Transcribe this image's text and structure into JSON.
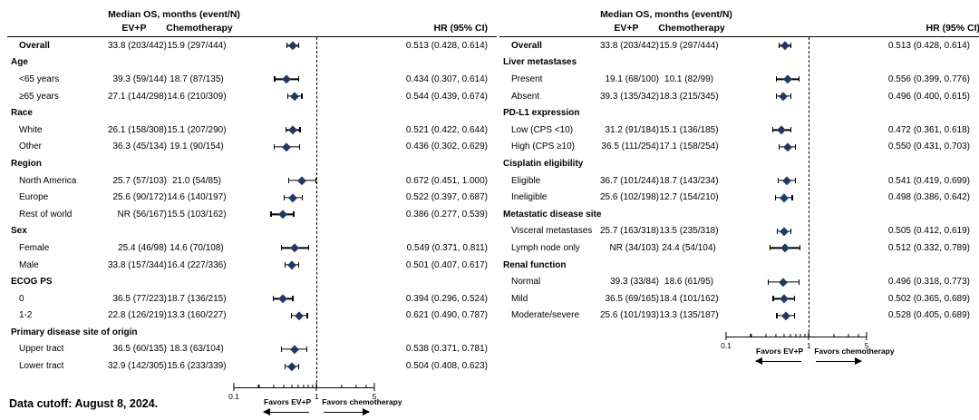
{
  "footnote": "Data cutoff: August 8, 2024.",
  "marker_color": "#1f3864",
  "chart_data": [
    {
      "type": "scatter",
      "variant": "forest-plot",
      "title": "Median OS, months (event/N)",
      "columns": {
        "ev": "EV+P",
        "chemo": "Chemotherapy",
        "hr": "HR (95% CI)"
      },
      "xscale": "log",
      "xlim": [
        0.1,
        5
      ],
      "x_ticks_labeled": [
        "0.1",
        "1",
        "5"
      ],
      "reference_line": 1,
      "favors_left": "Favors EV+P",
      "favors_right": "Favors chemotherapy",
      "rows": [
        {
          "kind": "data",
          "bold": true,
          "label": "Overall",
          "ev": "33.8 (203/442)",
          "chemo": "15.9 (297/444)",
          "hr": 0.513,
          "lo": 0.428,
          "hi": 0.614,
          "hr_text": "0.513 (0.428, 0.614)"
        },
        {
          "kind": "group",
          "label": "Age"
        },
        {
          "kind": "data",
          "label": "<65 years",
          "ev": "39.3 (59/144)",
          "chemo": "18.7 (87/135)",
          "hr": 0.434,
          "lo": 0.307,
          "hi": 0.614,
          "hr_text": "0.434 (0.307, 0.614)"
        },
        {
          "kind": "data",
          "label": "≥65 years",
          "ev": "27.1 (144/298)",
          "chemo": "14.6 (210/309)",
          "hr": 0.544,
          "lo": 0.439,
          "hi": 0.674,
          "hr_text": "0.544 (0.439, 0.674)"
        },
        {
          "kind": "group",
          "label": "Race"
        },
        {
          "kind": "data",
          "label": "White",
          "ev": "26.1 (158/308)",
          "chemo": "15.1 (207/290)",
          "hr": 0.521,
          "lo": 0.422,
          "hi": 0.644,
          "hr_text": "0.521 (0.422, 0.644)"
        },
        {
          "kind": "data",
          "label": "Other",
          "ev": "36.3 (45/134)",
          "chemo": "19.1 (90/154)",
          "hr": 0.436,
          "lo": 0.302,
          "hi": 0.629,
          "hr_text": "0.436 (0.302, 0.629)"
        },
        {
          "kind": "group",
          "label": "Region"
        },
        {
          "kind": "data",
          "label": "North America",
          "ev": "25.7 (57/103)",
          "chemo": "21.0 (54/85)",
          "hr": 0.672,
          "lo": 0.451,
          "hi": 1.0,
          "hr_text": "0.672 (0.451, 1.000)"
        },
        {
          "kind": "data",
          "label": "Europe",
          "ev": "25.6 (90/172)",
          "chemo": "14.6 (140/197)",
          "hr": 0.522,
          "lo": 0.397,
          "hi": 0.687,
          "hr_text": "0.522 (0.397, 0.687)"
        },
        {
          "kind": "data",
          "label": "Rest of world",
          "ev": "NR (56/167)",
          "chemo": "15.5 (103/162)",
          "hr": 0.386,
          "lo": 0.277,
          "hi": 0.539,
          "hr_text": "0.386 (0.277, 0.539)"
        },
        {
          "kind": "group",
          "label": "Sex"
        },
        {
          "kind": "data",
          "label": "Female",
          "ev": "25.4 (46/98)",
          "chemo": "14.6 (70/108)",
          "hr": 0.549,
          "lo": 0.371,
          "hi": 0.811,
          "hr_text": "0.549 (0.371, 0.811)"
        },
        {
          "kind": "data",
          "label": "Male",
          "ev": "33.8 (157/344)",
          "chemo": "16.4 (227/336)",
          "hr": 0.501,
          "lo": 0.407,
          "hi": 0.617,
          "hr_text": "0.501 (0.407, 0.617)"
        },
        {
          "kind": "group",
          "label": "ECOG PS"
        },
        {
          "kind": "data",
          "label": "0",
          "ev": "36.5 (77/223)",
          "chemo": "18.7 (136/215)",
          "hr": 0.394,
          "lo": 0.296,
          "hi": 0.524,
          "hr_text": "0.394 (0.296, 0.524)"
        },
        {
          "kind": "data",
          "label": "1-2",
          "ev": "22.8 (126/219)",
          "chemo": "13.3 (160/227)",
          "hr": 0.621,
          "lo": 0.49,
          "hi": 0.787,
          "hr_text": "0.621 (0.490, 0.787)"
        },
        {
          "kind": "group",
          "label": "Primary disease site of origin"
        },
        {
          "kind": "data",
          "label": "Upper tract",
          "ev": "36.5 (60/135)",
          "chemo": "18.3 (63/104)",
          "hr": 0.538,
          "lo": 0.371,
          "hi": 0.781,
          "hr_text": "0.538 (0.371, 0.781)"
        },
        {
          "kind": "data",
          "label": "Lower tract",
          "ev": "32.9 (142/305)",
          "chemo": "15.6 (233/339)",
          "hr": 0.504,
          "lo": 0.408,
          "hi": 0.623,
          "hr_text": "0.504 (0.408, 0.623)"
        }
      ]
    },
    {
      "type": "scatter",
      "variant": "forest-plot",
      "title": "Median OS, months (event/N)",
      "columns": {
        "ev": "EV+P",
        "chemo": "Chemotherapy",
        "hr": "HR (95% CI)"
      },
      "xscale": "log",
      "xlim": [
        0.1,
        5
      ],
      "x_ticks_labeled": [
        "0.1",
        "1",
        "5"
      ],
      "reference_line": 1,
      "favors_left": "Favors EV+P",
      "favors_right": "Favors chemotherapy",
      "rows": [
        {
          "kind": "data",
          "bold": true,
          "label": "Overall",
          "ev": "33.8 (203/442)",
          "chemo": "15.9 (297/444)",
          "hr": 0.513,
          "lo": 0.428,
          "hi": 0.614,
          "hr_text": "0.513 (0.428, 0.614)"
        },
        {
          "kind": "group",
          "label": "Liver metastases"
        },
        {
          "kind": "data",
          "label": "Present",
          "ev": "19.1 (68/100)",
          "chemo": "10.1 (82/99)",
          "hr": 0.556,
          "lo": 0.399,
          "hi": 0.776,
          "hr_text": "0.556 (0.399, 0.776)"
        },
        {
          "kind": "data",
          "label": "Absent",
          "ev": "39.3 (135/342)",
          "chemo": "18.3 (215/345)",
          "hr": 0.496,
          "lo": 0.4,
          "hi": 0.615,
          "hr_text": "0.496 (0.400, 0.615)"
        },
        {
          "kind": "group",
          "label": "PD-L1 expression"
        },
        {
          "kind": "data",
          "label": "Low (CPS <10)",
          "ev": "31.2 (91/184)",
          "chemo": "15.1 (136/185)",
          "hr": 0.472,
          "lo": 0.361,
          "hi": 0.618,
          "hr_text": "0.472 (0.361, 0.618)"
        },
        {
          "kind": "data",
          "label": "High (CPS ≥10)",
          "ev": "36.5 (111/254)",
          "chemo": "17.1 (158/254)",
          "hr": 0.55,
          "lo": 0.431,
          "hi": 0.703,
          "hr_text": "0.550 (0.431, 0.703)"
        },
        {
          "kind": "group",
          "label": "Cisplatin eligibility"
        },
        {
          "kind": "data",
          "label": "Eligible",
          "ev": "36.7 (101/244)",
          "chemo": "18.7 (143/234)",
          "hr": 0.541,
          "lo": 0.419,
          "hi": 0.699,
          "hr_text": "0.541 (0.419, 0.699)"
        },
        {
          "kind": "data",
          "label": "Ineligible",
          "ev": "25.6 (102/198)",
          "chemo": "12.7 (154/210)",
          "hr": 0.498,
          "lo": 0.386,
          "hi": 0.642,
          "hr_text": "0.498 (0.386, 0.642)"
        },
        {
          "kind": "group",
          "label": "Metastatic disease site"
        },
        {
          "kind": "data",
          "label": "Visceral metastases",
          "ev": "25.7 (163/318)",
          "chemo": "13.5 (235/318)",
          "hr": 0.505,
          "lo": 0.412,
          "hi": 0.619,
          "hr_text": "0.505 (0.412, 0.619)"
        },
        {
          "kind": "data",
          "label": "Lymph node only",
          "ev": "NR (34/103)",
          "chemo": "24.4 (54/104)",
          "hr": 0.512,
          "lo": 0.332,
          "hi": 0.789,
          "hr_text": "0.512 (0.332, 0.789)"
        },
        {
          "kind": "group",
          "label": "Renal function"
        },
        {
          "kind": "data",
          "label": "Normal",
          "ev": "39.3 (33/84)",
          "chemo": "18.6 (61/95)",
          "hr": 0.496,
          "lo": 0.318,
          "hi": 0.773,
          "hr_text": "0.496 (0.318, 0.773)"
        },
        {
          "kind": "data",
          "label": "Mild",
          "ev": "36.5 (69/165)",
          "chemo": "18.4 (101/162)",
          "hr": 0.502,
          "lo": 0.365,
          "hi": 0.689,
          "hr_text": "0.502 (0.365, 0.689)"
        },
        {
          "kind": "data",
          "label": "Moderate/severe",
          "ev": "25.6 (101/193)",
          "chemo": "13.3 (135/187)",
          "hr": 0.528,
          "lo": 0.405,
          "hi": 0.689,
          "hr_text": "0.528 (0.405, 0.689)"
        }
      ]
    }
  ]
}
